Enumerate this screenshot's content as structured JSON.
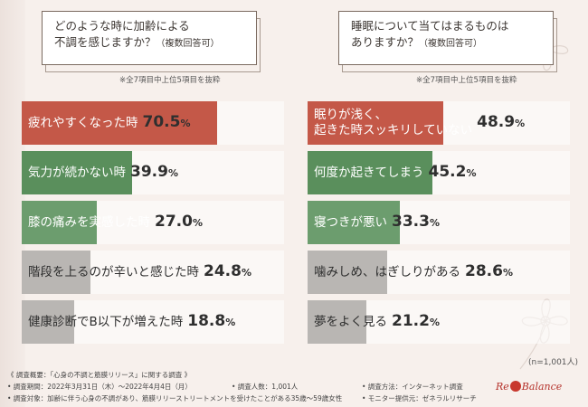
{
  "chart_data": [
    {
      "type": "bar",
      "title": "どのような時に加齢による不調を感じますか？（複数回答可）",
      "title_lines": [
        "どのような時に加齢による",
        "不調を感じますか？"
      ],
      "title_note": "（複数回答可）",
      "note": "※全7項目中上位5項目を抜粋",
      "categories": [
        "疲れやすくなった時",
        "気力が続かない時",
        "膝の痛みを実感した時",
        "階段を上るのが辛いと感じた時",
        "健康診断でB以下が増えた時"
      ],
      "values": [
        70.5,
        39.9,
        27.0,
        24.8,
        18.8
      ],
      "labels": [
        "70.5",
        "39.9",
        "27.0",
        "24.8",
        "18.8"
      ],
      "bar_colors": [
        "#c45848",
        "#5a8f5c",
        "#6c9d6e",
        "#b9b6b3",
        "#b9b6b3"
      ],
      "unit": "%",
      "xlim": [
        0,
        100
      ]
    },
    {
      "type": "bar",
      "title": "睡眠について当てはまるものはありますか？（複数回答可）",
      "title_lines": [
        "睡眠について当てはまるものは",
        "ありますか？"
      ],
      "title_note": "（複数回答可）",
      "note": "※全7項目中上位5項目を抜粋",
      "categories": [
        [
          "眠りが浅く、",
          "起きた時スッキリしていない"
        ],
        "何度か起きてしまう",
        "寝つきが悪い",
        "噛みしめ、はぎしりがある",
        "夢をよく見る"
      ],
      "values": [
        48.9,
        45.2,
        33.3,
        28.6,
        21.2
      ],
      "labels": [
        "48.9",
        "45.2",
        "33.3",
        "28.6",
        "21.2"
      ],
      "bar_colors": [
        "#c45848",
        "#5a8f5c",
        "#6c9d6e",
        "#b9b6b3",
        "#b9b6b3"
      ],
      "unit": "%",
      "xlim": [
        0,
        100
      ]
    }
  ],
  "sample_size": "(n=1,001人)",
  "footer": {
    "overview": "《 調査概要：「心身の不調と筋膜リリース」に関する調査 》",
    "period": "• 調査期間：2022年3月31日（木）～2022年4月4日（月）",
    "respondents": "• 調査人数：1,001人",
    "method": "• 調査方法：インターネット調査",
    "target": "• 調査対象：加齢に伴う心身の不調があり、筋膜リリーストリートメントを受けたことがある35歳～59歳女性",
    "provider": "• モニター提供元：ゼネラルリサーチ"
  },
  "logo": {
    "text_left": "Re",
    "text_right": "Balance"
  },
  "colors": {
    "background": "#f7f0ec",
    "red": "#c45848",
    "green": "#5a8f5c",
    "gray": "#b9b6b3"
  }
}
